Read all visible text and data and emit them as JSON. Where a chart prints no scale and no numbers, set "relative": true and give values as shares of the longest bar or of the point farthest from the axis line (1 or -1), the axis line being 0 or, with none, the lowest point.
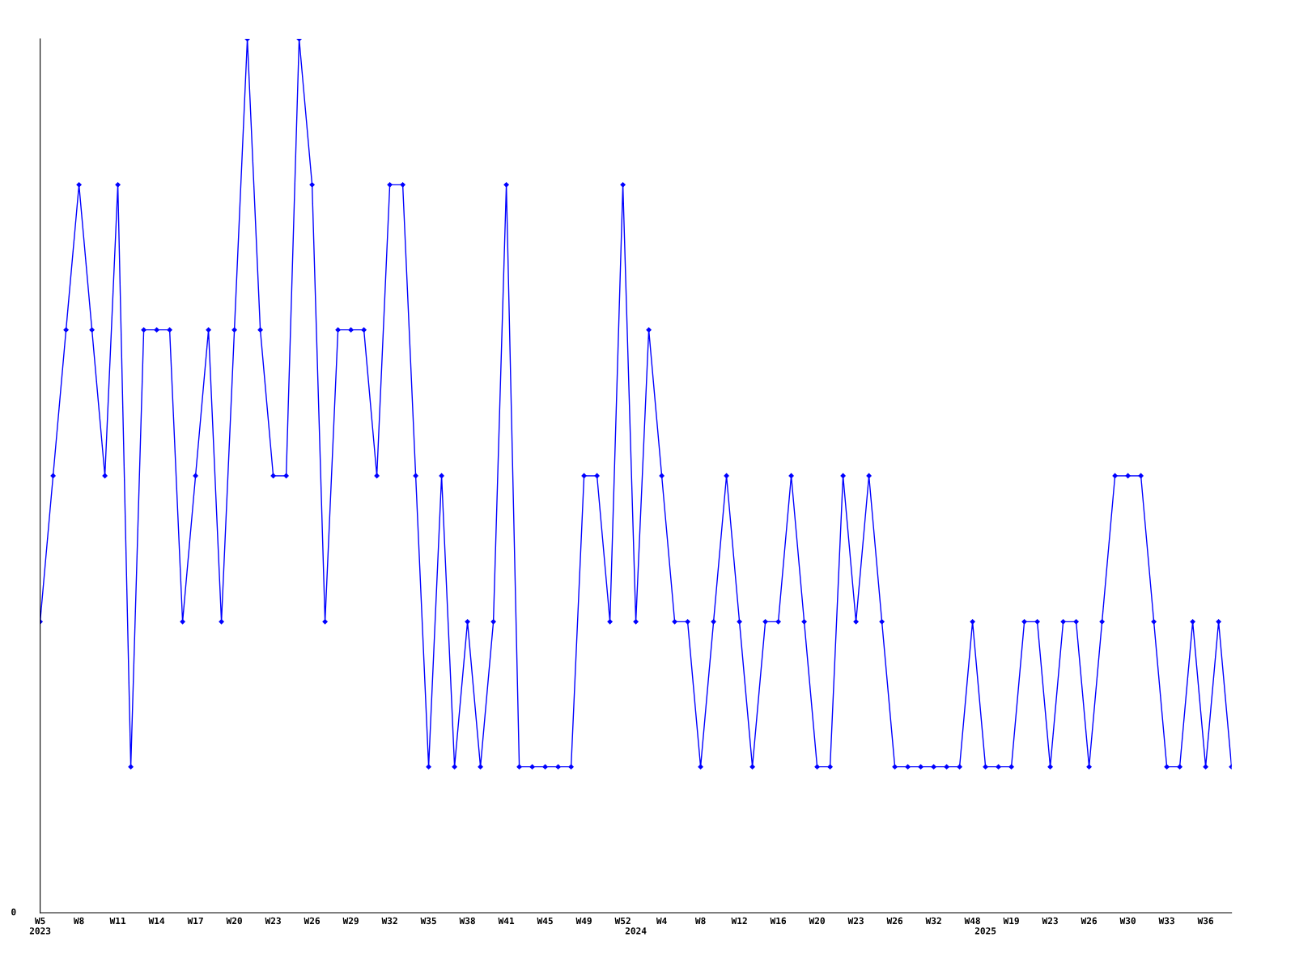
{
  "chart_data": {
    "type": "line",
    "relative": true,
    "marker": "diamond",
    "line_style": "solid",
    "grid": false,
    "legend": false,
    "categories": [
      "W5\n2023",
      null,
      null,
      "W8",
      null,
      null,
      "W11",
      null,
      null,
      "W14",
      null,
      null,
      "W17",
      null,
      null,
      "W20",
      null,
      null,
      "W23",
      null,
      null,
      "W26",
      null,
      null,
      "W29",
      null,
      null,
      "W32",
      null,
      null,
      "W35",
      null,
      null,
      "W38",
      null,
      null,
      "W41",
      null,
      null,
      "W45",
      null,
      null,
      "W49",
      null,
      null,
      "W52",
      "\n2024",
      null,
      "W4",
      null,
      null,
      "W8",
      null,
      null,
      "W12",
      null,
      null,
      "W16",
      null,
      null,
      "W20",
      null,
      null,
      "W23",
      null,
      null,
      "W26",
      null,
      null,
      "W32",
      null,
      null,
      "W48",
      "\n2025",
      null,
      "W19",
      null,
      null,
      "W23",
      null,
      null,
      "W26",
      null,
      null,
      "W30",
      null,
      null,
      "W33",
      null,
      null,
      "W36",
      null,
      null
    ],
    "series": [
      {
        "color": "#0000ff",
        "values": [
          0.333,
          0.5,
          0.667,
          0.833,
          0.667,
          0.5,
          0.833,
          0.167,
          0.667,
          0.667,
          0.667,
          0.333,
          0.5,
          0.667,
          0.333,
          0.667,
          1,
          0.667,
          0.5,
          0.5,
          1,
          0.833,
          0.333,
          0.667,
          0.667,
          0.667,
          0.5,
          0.833,
          0.833,
          0.5,
          0.167,
          0.5,
          0.167,
          0.333,
          0.167,
          0.333,
          0.833,
          0.167,
          0.167,
          0.167,
          0.167,
          0.167,
          0.5,
          0.5,
          0.333,
          0.833,
          0.333,
          0.667,
          0.5,
          0.333,
          0.333,
          0.167,
          0.333,
          0.5,
          0.333,
          0.167,
          0.333,
          0.333,
          0.5,
          0.333,
          0.167,
          0.167,
          0.5,
          0.333,
          0.5,
          0.333,
          0.167,
          0.167,
          0.167,
          0.167,
          0.167,
          0.167,
          0.333,
          0.167,
          0.167,
          0.167,
          0.333,
          0.333,
          0.167,
          0.333,
          0.333,
          0.167,
          0.333,
          0.5,
          0.5,
          0.5,
          0.333,
          0.167,
          0.167,
          0.333,
          0.167,
          0.333,
          0.167
        ]
      }
    ],
    "annotations": [
      "0"
    ]
  }
}
